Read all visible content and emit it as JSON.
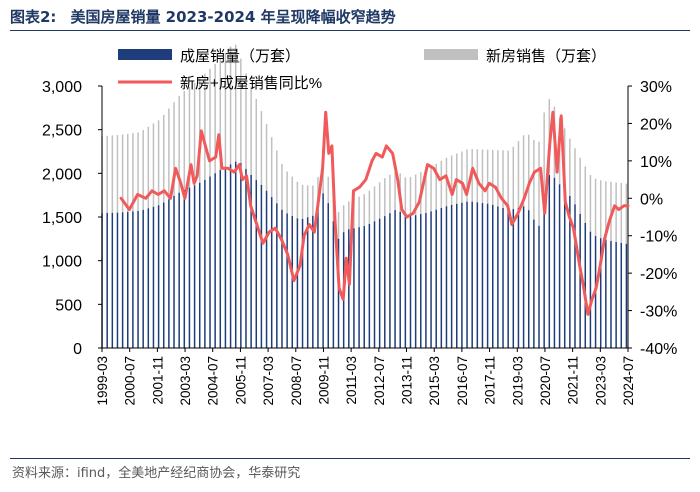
{
  "header": {
    "figure_label": "图表2:",
    "title": "美国房屋销量 2023-2024 年呈现降幅收窄趋势"
  },
  "source": "资料来源：ifind，全美地产经纪商协会，华泰研究",
  "colors": {
    "existing": "#1f3d7a",
    "new": "#c0c0c0",
    "yoy": "#f05a5a",
    "rule": "#1f3864"
  },
  "chart_data": {
    "type": "bar+line",
    "title": "",
    "legend": [
      {
        "name": "成屋销量（万套）",
        "kind": "bar"
      },
      {
        "name": "新房销售（万套）",
        "kind": "bar"
      },
      {
        "name": "新房+成屋销售同比%",
        "kind": "line"
      }
    ],
    "x_tick_labels": [
      "1999-03",
      "2000-07",
      "2001-11",
      "2003-03",
      "2004-07",
      "2005-11",
      "2007-03",
      "2008-07",
      "2009-11",
      "2011-03",
      "2012-07",
      "2013-11",
      "2015-03",
      "2016-07",
      "2017-11",
      "2019-03",
      "2020-07",
      "2021-11",
      "2023-03",
      "2024-07"
    ],
    "y_left": {
      "min": 0,
      "max": 3000,
      "ticks": [
        "0",
        "500",
        "1,000",
        "1,500",
        "2,000",
        "2,500",
        "3,000"
      ]
    },
    "y_right": {
      "min": -40,
      "max": 30,
      "ticks": [
        "-40%",
        "-30%",
        "-20%",
        "-10%",
        "0%",
        "10%",
        "20%",
        "30%"
      ]
    },
    "existing_keys": [
      [
        1999.17,
        1545
      ],
      [
        2000.0,
        1550
      ],
      [
        2001.0,
        1570
      ],
      [
        2002.0,
        1640
      ],
      [
        2003.0,
        1790
      ],
      [
        2004.0,
        1900
      ],
      [
        2005.0,
        2050
      ],
      [
        2005.8,
        2150
      ],
      [
        2006.5,
        1960
      ],
      [
        2007.0,
        1850
      ],
      [
        2008.0,
        1560
      ],
      [
        2008.8,
        1470
      ],
      [
        2009.5,
        1520
      ],
      [
        2009.9,
        1780
      ],
      [
        2010.3,
        1600
      ],
      [
        2010.6,
        1230
      ],
      [
        2011.0,
        1350
      ],
      [
        2012.0,
        1400
      ],
      [
        2013.0,
        1520
      ],
      [
        2013.5,
        1590
      ],
      [
        2014.0,
        1500
      ],
      [
        2015.0,
        1550
      ],
      [
        2016.0,
        1630
      ],
      [
        2017.0,
        1680
      ],
      [
        2018.0,
        1650
      ],
      [
        2019.0,
        1580
      ],
      [
        2019.8,
        1630
      ],
      [
        2020.4,
        1370
      ],
      [
        2020.8,
        1950
      ],
      [
        2021.0,
        2000
      ],
      [
        2021.5,
        1850
      ],
      [
        2022.0,
        1720
      ],
      [
        2022.5,
        1500
      ],
      [
        2023.0,
        1300
      ],
      [
        2023.5,
        1250
      ],
      [
        2024.0,
        1220
      ],
      [
        2024.75,
        1190
      ]
    ],
    "new_keys": [
      [
        1999.17,
        880
      ],
      [
        2001.0,
        900
      ],
      [
        2002.0,
        980
      ],
      [
        2003.0,
        1120
      ],
      [
        2004.0,
        1200
      ],
      [
        2005.0,
        1280
      ],
      [
        2005.6,
        1380
      ],
      [
        2006.0,
        1150
      ],
      [
        2007.0,
        820
      ],
      [
        2008.0,
        500
      ],
      [
        2009.0,
        380
      ],
      [
        2010.0,
        300
      ],
      [
        2011.0,
        310
      ],
      [
        2012.0,
        370
      ],
      [
        2013.0,
        440
      ],
      [
        2014.0,
        440
      ],
      [
        2015.0,
        500
      ],
      [
        2016.0,
        560
      ],
      [
        2017.0,
        600
      ],
      [
        2018.0,
        620
      ],
      [
        2019.0,
        680
      ],
      [
        2020.5,
        980
      ],
      [
        2021.0,
        850
      ],
      [
        2022.0,
        640
      ],
      [
        2023.0,
        650
      ],
      [
        2024.0,
        680
      ],
      [
        2024.75,
        690
      ]
    ],
    "yoy_pct": [
      [
        2000.1,
        0
      ],
      [
        2000.5,
        -3
      ],
      [
        2000.9,
        1
      ],
      [
        2001.3,
        0
      ],
      [
        2001.6,
        2
      ],
      [
        2001.9,
        1
      ],
      [
        2002.2,
        2
      ],
      [
        2002.5,
        0
      ],
      [
        2002.75,
        8
      ],
      [
        2003.0,
        4
      ],
      [
        2003.2,
        0
      ],
      [
        2003.5,
        9
      ],
      [
        2003.65,
        4
      ],
      [
        2003.8,
        6
      ],
      [
        2004.0,
        18
      ],
      [
        2004.2,
        14
      ],
      [
        2004.4,
        10
      ],
      [
        2004.7,
        11
      ],
      [
        2004.85,
        17
      ],
      [
        2005.0,
        8
      ],
      [
        2005.3,
        8
      ],
      [
        2005.6,
        7
      ],
      [
        2005.85,
        9
      ],
      [
        2006.0,
        5
      ],
      [
        2006.2,
        6
      ],
      [
        2006.4,
        -2
      ],
      [
        2006.7,
        -7
      ],
      [
        2007.0,
        -12
      ],
      [
        2007.3,
        -9
      ],
      [
        2007.6,
        -8
      ],
      [
        2007.9,
        -11
      ],
      [
        2008.2,
        -15
      ],
      [
        2008.5,
        -22
      ],
      [
        2008.8,
        -18
      ],
      [
        2009.0,
        -10
      ],
      [
        2009.25,
        -7
      ],
      [
        2009.5,
        -9
      ],
      [
        2009.9,
        8
      ],
      [
        2010.05,
        23
      ],
      [
        2010.2,
        12
      ],
      [
        2010.35,
        14
      ],
      [
        2010.5,
        -6
      ],
      [
        2010.7,
        -24
      ],
      [
        2010.9,
        -27
      ],
      [
        2011.05,
        -16
      ],
      [
        2011.2,
        -23
      ],
      [
        2011.4,
        2
      ],
      [
        2011.7,
        3
      ],
      [
        2012.0,
        5
      ],
      [
        2012.3,
        10
      ],
      [
        2012.5,
        12
      ],
      [
        2012.8,
        11
      ],
      [
        2013.0,
        14
      ],
      [
        2013.3,
        12
      ],
      [
        2013.55,
        5
      ],
      [
        2013.75,
        -3
      ],
      [
        2014.0,
        -5
      ],
      [
        2014.3,
        -4
      ],
      [
        2014.6,
        -1
      ],
      [
        2015.0,
        9
      ],
      [
        2015.3,
        8
      ],
      [
        2015.6,
        5
      ],
      [
        2015.9,
        6
      ],
      [
        2016.2,
        1
      ],
      [
        2016.4,
        5
      ],
      [
        2016.7,
        4
      ],
      [
        2016.9,
        1
      ],
      [
        2017.2,
        8
      ],
      [
        2017.5,
        4
      ],
      [
        2017.8,
        2
      ],
      [
        2018.0,
        4
      ],
      [
        2018.3,
        3
      ],
      [
        2018.6,
        0
      ],
      [
        2018.9,
        -2
      ],
      [
        2019.1,
        -7
      ],
      [
        2019.4,
        -4
      ],
      [
        2019.7,
        0
      ],
      [
        2019.95,
        4
      ],
      [
        2020.2,
        7
      ],
      [
        2020.5,
        8
      ],
      [
        2020.7,
        -4
      ],
      [
        2020.95,
        15
      ],
      [
        2021.1,
        23
      ],
      [
        2021.3,
        7
      ],
      [
        2021.5,
        22
      ],
      [
        2021.7,
        -1
      ],
      [
        2021.9,
        -5
      ],
      [
        2022.1,
        -8
      ],
      [
        2022.4,
        -18
      ],
      [
        2022.6,
        -24
      ],
      [
        2022.8,
        -31
      ],
      [
        2023.0,
        -27
      ],
      [
        2023.2,
        -24
      ],
      [
        2023.4,
        -18
      ],
      [
        2023.6,
        -11
      ],
      [
        2023.85,
        -6
      ],
      [
        2024.1,
        -2
      ],
      [
        2024.3,
        -3
      ],
      [
        2024.55,
        -2
      ],
      [
        2024.75,
        -2
      ]
    ]
  }
}
